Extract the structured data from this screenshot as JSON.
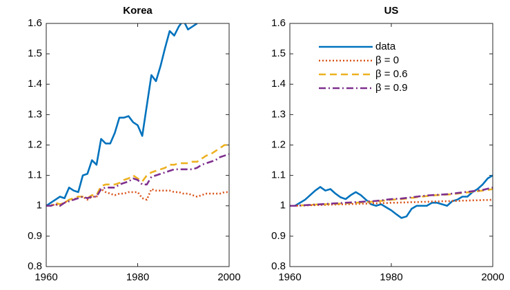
{
  "chart_data": [
    {
      "type": "line",
      "title": "Korea",
      "x": [
        1960,
        1961,
        1962,
        1963,
        1964,
        1965,
        1966,
        1967,
        1968,
        1969,
        1970,
        1971,
        1972,
        1973,
        1974,
        1975,
        1976,
        1977,
        1978,
        1979,
        1980,
        1981,
        1982,
        1983,
        1984,
        1985,
        1986,
        1987,
        1988,
        1989,
        1990,
        1991,
        1992,
        1993,
        1994,
        1995,
        1996,
        1997,
        1998,
        1999,
        2000
      ],
      "xlim": [
        1960,
        2000
      ],
      "xticks": [
        1960,
        1980,
        2000
      ],
      "ylim": [
        0.8,
        1.6
      ],
      "yticks": [
        0.8,
        0.9,
        {
          "value": 1.0,
          "label": "1"
        },
        1.1,
        1.2,
        1.3,
        1.4,
        1.5,
        1.6
      ],
      "series": [
        {
          "color": "#0072BD",
          "style": "solid",
          "values": [
            1.0,
            1.01,
            1.02,
            1.03,
            1.025,
            1.06,
            1.05,
            1.045,
            1.1,
            1.105,
            1.15,
            1.135,
            1.22,
            1.205,
            1.205,
            1.24,
            1.29,
            1.29,
            1.295,
            1.275,
            1.265,
            1.23,
            1.33,
            1.43,
            1.41,
            1.46,
            1.52,
            1.575,
            1.56,
            1.59,
            1.61,
            1.58,
            1.59,
            1.6,
            null,
            null,
            null,
            null,
            null,
            null,
            null
          ]
        },
        {
          "color": "#D95319",
          "style": "dotted",
          "values": [
            1.0,
            1.0,
            1.005,
            1.0,
            1.01,
            1.02,
            1.02,
            1.03,
            1.03,
            1.02,
            1.03,
            1.03,
            1.055,
            1.045,
            1.04,
            1.035,
            1.04,
            1.04,
            1.045,
            1.045,
            1.045,
            1.025,
            1.02,
            1.055,
            1.05,
            1.05,
            1.05,
            1.05,
            1.045,
            1.045,
            1.04,
            1.04,
            1.035,
            1.03,
            1.035,
            1.04,
            1.04,
            1.04,
            1.04,
            1.045,
            1.045
          ]
        },
        {
          "color": "#EDB120",
          "style": "dashed",
          "values": [
            1.0,
            1.0,
            1.01,
            1.005,
            1.01,
            1.02,
            1.025,
            1.03,
            1.03,
            1.025,
            1.035,
            1.035,
            1.065,
            1.07,
            1.07,
            1.07,
            1.075,
            1.085,
            1.09,
            1.1,
            1.09,
            1.08,
            1.1,
            1.11,
            1.115,
            1.12,
            1.125,
            1.135,
            1.135,
            1.14,
            1.14,
            1.14,
            1.145,
            1.145,
            1.155,
            1.165,
            1.17,
            1.18,
            1.19,
            1.2,
            1.2
          ]
        },
        {
          "color": "#7E2F8E",
          "style": "dashdot",
          "values": [
            1.0,
            1.0,
            1.005,
            1.0,
            1.01,
            1.015,
            1.02,
            1.025,
            1.03,
            1.025,
            1.03,
            1.03,
            1.055,
            1.06,
            1.06,
            1.06,
            1.07,
            1.075,
            1.08,
            1.09,
            1.085,
            1.07,
            1.07,
            1.095,
            1.1,
            1.105,
            1.11,
            1.115,
            1.12,
            1.12,
            1.12,
            1.12,
            1.12,
            1.125,
            1.135,
            1.14,
            1.145,
            1.15,
            1.16,
            1.165,
            1.17
          ]
        }
      ]
    },
    {
      "type": "line",
      "title": "US",
      "legend": "northwest",
      "x": [
        1960,
        1961,
        1962,
        1963,
        1964,
        1965,
        1966,
        1967,
        1968,
        1969,
        1970,
        1971,
        1972,
        1973,
        1974,
        1975,
        1976,
        1977,
        1978,
        1979,
        1980,
        1981,
        1982,
        1983,
        1984,
        1985,
        1986,
        1987,
        1988,
        1989,
        1990,
        1991,
        1992,
        1993,
        1994,
        1995,
        1996,
        1997,
        1998,
        1999,
        2000
      ],
      "xlim": [
        1960,
        2000
      ],
      "xticks": [
        1960,
        1980,
        2000
      ],
      "ylim": [
        0.8,
        1.6
      ],
      "yticks": [
        0.8,
        0.9,
        {
          "value": 1.0,
          "label": "1"
        },
        1.1,
        1.2,
        1.3,
        1.4,
        1.5,
        1.6
      ],
      "series": [
        {
          "name": "data",
          "color": "#0072BD",
          "style": "solid",
          "values": [
            1.0,
            1.0,
            1.01,
            1.02,
            1.035,
            1.05,
            1.062,
            1.05,
            1.055,
            1.04,
            1.028,
            1.022,
            1.035,
            1.045,
            1.035,
            1.02,
            1.005,
            1.0,
            1.005,
            0.995,
            0.985,
            0.972,
            0.96,
            0.965,
            0.99,
            1.0,
            1.0,
            1.0,
            1.01,
            1.01,
            1.005,
            1.0,
            1.015,
            1.02,
            1.03,
            1.03,
            1.045,
            1.055,
            1.07,
            1.09,
            1.1
          ]
        },
        {
          "name": "β = 0",
          "color": "#D95319",
          "style": "dotted",
          "values": [
            1.0,
            1.0,
            1.001,
            1.001,
            1.002,
            1.002,
            1.003,
            1.003,
            1.004,
            1.004,
            1.005,
            1.005,
            1.006,
            1.006,
            1.007,
            1.007,
            1.008,
            1.008,
            1.009,
            1.009,
            1.01,
            1.01,
            1.011,
            1.011,
            1.012,
            1.012,
            1.013,
            1.013,
            1.014,
            1.014,
            1.015,
            1.015,
            1.016,
            1.016,
            1.017,
            1.017,
            1.018,
            1.018,
            1.019,
            1.019,
            1.02
          ]
        },
        {
          "name": "β = 0.6",
          "color": "#EDB120",
          "style": "dashed",
          "values": [
            1.0,
            1.0,
            1.001,
            1.002,
            1.003,
            1.004,
            1.005,
            1.005,
            1.006,
            1.006,
            1.007,
            1.008,
            1.009,
            1.01,
            1.011,
            1.012,
            1.013,
            1.014,
            1.016,
            1.018,
            1.02,
            1.021,
            1.022,
            1.024,
            1.026,
            1.028,
            1.03,
            1.032,
            1.034,
            1.035,
            1.036,
            1.037,
            1.038,
            1.04,
            1.042,
            1.044,
            1.046,
            1.048,
            1.05,
            1.052,
            1.055
          ]
        },
        {
          "name": "β = 0.9",
          "color": "#7E2F8E",
          "style": "dashdot",
          "values": [
            1.0,
            1.0,
            1.001,
            1.002,
            1.003,
            1.004,
            1.005,
            1.006,
            1.007,
            1.008,
            1.009,
            1.01,
            1.011,
            1.012,
            1.013,
            1.014,
            1.015,
            1.016,
            1.018,
            1.02,
            1.022,
            1.023,
            1.024,
            1.026,
            1.028,
            1.03,
            1.032,
            1.034,
            1.035,
            1.036,
            1.037,
            1.038,
            1.04,
            1.042,
            1.044,
            1.046,
            1.048,
            1.05,
            1.052,
            1.056,
            1.06
          ]
        }
      ]
    }
  ]
}
